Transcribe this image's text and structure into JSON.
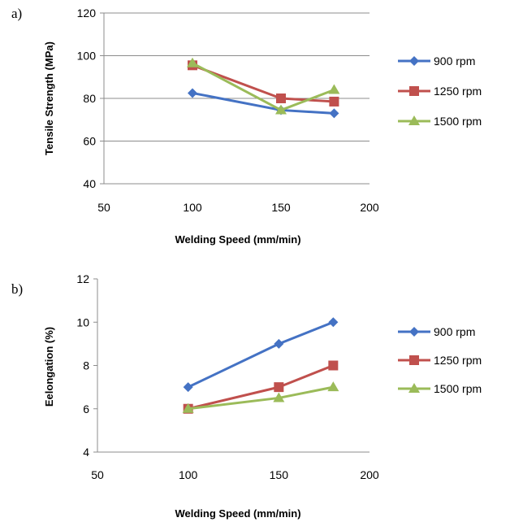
{
  "chart_data": [
    {
      "type": "line",
      "panel_label": "a)",
      "x": [
        100,
        150,
        180
      ],
      "series": [
        {
          "name": "900 rpm",
          "values": [
            82.5,
            74.5,
            73
          ],
          "color": "#4472C4",
          "marker": "diamond"
        },
        {
          "name": "1250 rpm",
          "values": [
            95.5,
            80,
            78.5
          ],
          "color": "#C0504D",
          "marker": "square"
        },
        {
          "name": "1500 rpm",
          "values": [
            96.5,
            74.5,
            84
          ],
          "color": "#9BBB59",
          "marker": "triangle"
        }
      ],
      "xlabel": "Welding Speed (mm/min)",
      "ylabel": "Tensile Strength (MPa)",
      "xlim": [
        50,
        200
      ],
      "ylim": [
        40,
        120
      ],
      "xticks": [
        50,
        100,
        150,
        200
      ],
      "yticks": [
        40,
        60,
        80,
        100,
        120
      ],
      "grid": "horizontal",
      "legend_position": "right"
    },
    {
      "type": "line",
      "panel_label": "b)",
      "x": [
        100,
        150,
        180
      ],
      "series": [
        {
          "name": "900 rpm",
          "values": [
            7,
            9,
            10
          ],
          "color": "#4472C4",
          "marker": "diamond"
        },
        {
          "name": "1250 rpm",
          "values": [
            6,
            7,
            8
          ],
          "color": "#C0504D",
          "marker": "square"
        },
        {
          "name": "1500 rpm",
          "values": [
            6,
            6.5,
            7
          ],
          "color": "#9BBB59",
          "marker": "triangle"
        }
      ],
      "xlabel": "Welding Speed (mm/min)",
      "ylabel": "Eelongation (%)",
      "xlim": [
        50,
        200
      ],
      "ylim": [
        4,
        12
      ],
      "xticks": [
        50,
        100,
        150,
        200
      ],
      "yticks": [
        4,
        6,
        8,
        10,
        12
      ],
      "grid": "none",
      "legend_position": "right"
    }
  ]
}
